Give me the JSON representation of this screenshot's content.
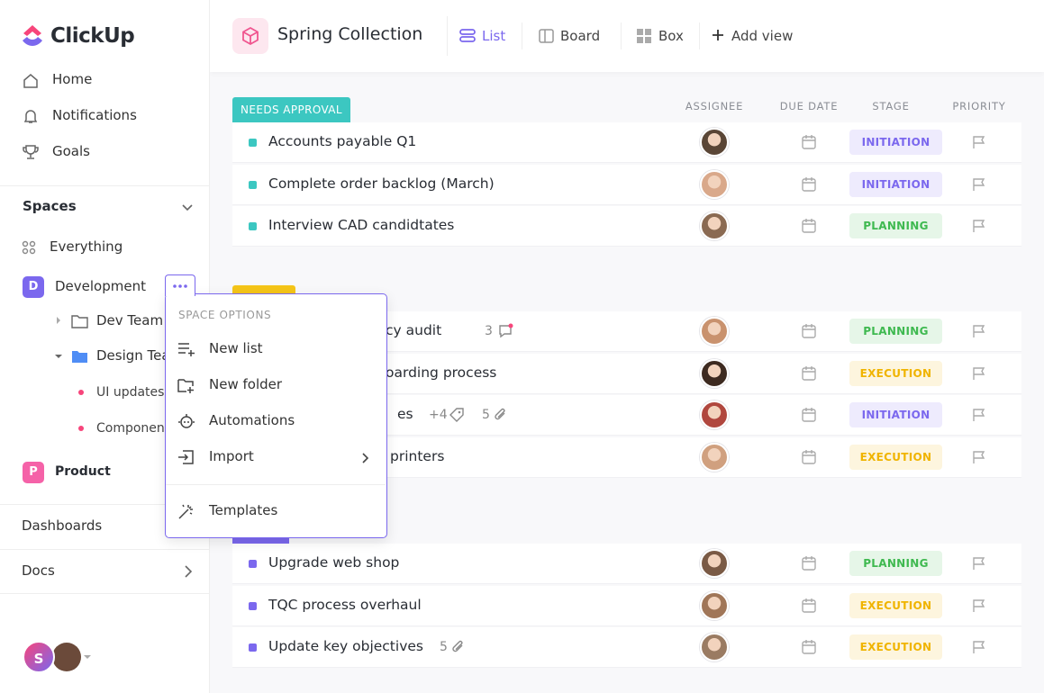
{
  "sidebar": {
    "logo": "ClickUp",
    "nav": [
      "Home",
      "Notifications",
      "Goals"
    ],
    "spaces_heading": "Spaces",
    "everything": "Everything",
    "development": {
      "initial": "D",
      "name": "Development",
      "color": "#7b68ee"
    },
    "folders": [
      "Dev Team",
      "Design Team"
    ],
    "lists": [
      "UI updates",
      "Components"
    ],
    "product": {
      "initial": "P",
      "name": "Product",
      "color": "#f562a8"
    },
    "dashboards": "Dashboards",
    "docs": "Docs",
    "user_initial": "S"
  },
  "header": {
    "title": "Spring Collection",
    "views": [
      "List",
      "Board",
      "Box"
    ],
    "add_view": "Add view"
  },
  "columns": [
    "ASSIGNEE",
    "DUE DATE",
    "STAGE",
    "PRIORITY"
  ],
  "groups": [
    {
      "label": "NEEDS APPROVAL",
      "color": "#3cc7c1",
      "tasks": [
        {
          "name": "Accounts payable Q1",
          "stage": "INITIATION",
          "stage_color": "#7b68ee"
        },
        {
          "name": "Complete order backlog (March)",
          "stage": "INITIATION",
          "stage_color": "#7b68ee"
        },
        {
          "name": "Interview CAD candidtates",
          "stage": "PLANNING",
          "stage_color": "#3fb950"
        }
      ]
    },
    {
      "color": "#f5c518",
      "tasks": [
        {
          "name": "cy audit",
          "comments": "3",
          "stage": "PLANNING",
          "stage_color": "#3fb950"
        },
        {
          "name": "oarding process",
          "stage": "EXECUTION",
          "stage_color": "#f0b400"
        },
        {
          "name": "es",
          "tags": "+4",
          "attachments": "5",
          "stage": "INITIATION",
          "stage_color": "#7b68ee"
        },
        {
          "name": "printers",
          "stage": "EXECUTION",
          "stage_color": "#f0b400"
        }
      ]
    },
    {
      "color": "#7b68ee",
      "tasks": [
        {
          "name": "Upgrade web shop",
          "stage": "PLANNING",
          "stage_color": "#3fb950"
        },
        {
          "name": "TQC process overhaul",
          "stage": "EXECUTION",
          "stage_color": "#f0b400"
        },
        {
          "name": "Update key objectives",
          "attachments": "5",
          "stage": "EXECUTION",
          "stage_color": "#f0b400"
        }
      ]
    }
  ],
  "menu": {
    "heading": "SPACE OPTIONS",
    "items": [
      "New list",
      "New folder",
      "Automations",
      "Import",
      "Templates"
    ]
  }
}
